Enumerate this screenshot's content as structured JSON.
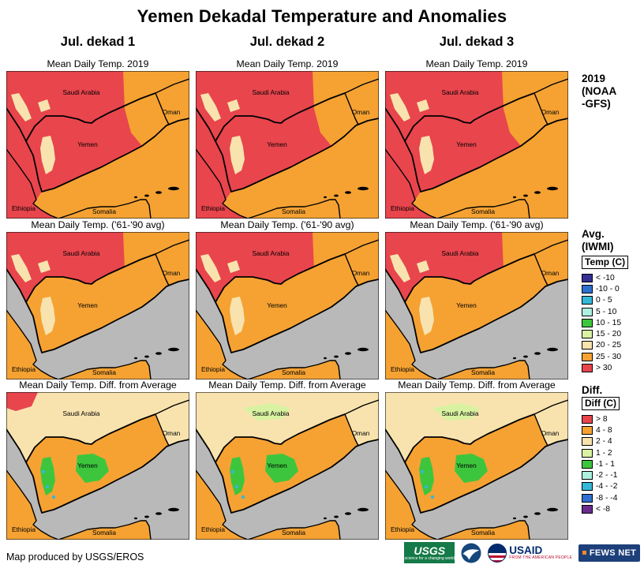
{
  "title": "Yemen Dekadal Temperature and Anomalies",
  "columns": [
    "Jul. dekad 1",
    "Jul. dekad 2",
    "Jul. dekad 3"
  ],
  "rows": [
    {
      "subtitle": "Mean Daily Temp. 2019",
      "side_label": "2019\n(NOAA\n-GFS)"
    },
    {
      "subtitle": "Mean Daily Temp. ('61-'90 avg)",
      "side_label": "Avg.\n(IWMI)"
    },
    {
      "subtitle": "Mean Daily Temp. Diff. from Average",
      "side_label": "Diff."
    }
  ],
  "map_labels": [
    "Saudi Arabia",
    "Oman",
    "Yemen",
    "Ethiopia",
    "Somalia"
  ],
  "panels": [
    [
      {
        "land": "#e8454d",
        "east": "#f5a233",
        "yemen": null,
        "highlands": "#f8e3ae",
        "spots": "#f8e3ae",
        "accent": null,
        "green1": null,
        "green2": null,
        "sea": "#f5a233",
        "redsea": "#e8454d",
        "ethiopia": "#e8454d",
        "somalia": "#f5a233"
      },
      {
        "land": "#e8454d",
        "east": "#f5a233",
        "yemen": null,
        "highlands": "#f8e3ae",
        "spots": "#f8e3ae",
        "accent": null,
        "green1": null,
        "green2": null,
        "sea": "#f5a233",
        "redsea": "#e8454d",
        "ethiopia": "#e8454d",
        "somalia": "#f5a233"
      },
      {
        "land": "#e8454d",
        "east": "#f5a233",
        "yemen": null,
        "highlands": "#f8e3ae",
        "spots": "#f8e3ae",
        "accent": null,
        "green1": null,
        "green2": null,
        "sea": "#f5a233",
        "redsea": "#e8454d",
        "ethiopia": "#e8454d",
        "somalia": "#f5a233"
      }
    ],
    [
      {
        "land": "#e8454d",
        "east": "#f5a233",
        "yemen": "#f5a233",
        "highlands": "#f8e3ae",
        "spots": "#f8e3ae",
        "accent": null,
        "green1": null,
        "green2": null,
        "sea": "#b9b9b9",
        "redsea": "#b9b9b9",
        "ethiopia": "#f5a233",
        "somalia": "#f5a233"
      },
      {
        "land": "#e8454d",
        "east": "#f5a233",
        "yemen": "#f5a233",
        "highlands": "#f8e3ae",
        "spots": "#f8e3ae",
        "accent": null,
        "green1": null,
        "green2": null,
        "sea": "#b9b9b9",
        "redsea": "#b9b9b9",
        "ethiopia": "#f5a233",
        "somalia": "#f5a233"
      },
      {
        "land": "#e8454d",
        "east": "#f5a233",
        "yemen": "#f5a233",
        "highlands": "#f8e3ae",
        "spots": "#f8e3ae",
        "accent": null,
        "green1": null,
        "green2": null,
        "sea": "#b9b9b9",
        "redsea": "#b9b9b9",
        "ethiopia": "#f5a233",
        "somalia": "#f5a233"
      }
    ],
    [
      {
        "land": "#f8e3ae",
        "east": null,
        "yemen": "#f5a233",
        "highlands": "#3dc63d",
        "spots": null,
        "accent": "#e8454d",
        "green1": "#3dc63d",
        "green2": null,
        "sea": "#b9b9b9",
        "redsea": "#b9b9b9",
        "ethiopia": "#f5a233",
        "somalia": "#f5a233"
      },
      {
        "land": "#f8e3ae",
        "east": null,
        "yemen": "#f5a233",
        "highlands": "#3dc63d",
        "spots": null,
        "accent": null,
        "green1": "#3dc63d",
        "green2": "#d9f2a2",
        "sea": "#b9b9b9",
        "redsea": "#b9b9b9",
        "ethiopia": "#f5a233",
        "somalia": "#f5a233"
      },
      {
        "land": "#f8e3ae",
        "east": null,
        "yemen": "#f5a233",
        "highlands": "#3dc63d",
        "spots": null,
        "accent": null,
        "green1": "#3dc63d",
        "green2": "#d9f2a2",
        "sea": "#b9b9b9",
        "redsea": "#b9b9b9",
        "ethiopia": "#f5a233",
        "somalia": "#f5a233"
      }
    ]
  ],
  "legends": {
    "temp": {
      "title": "Temp (C)",
      "entries": [
        {
          "label": "< -10",
          "color": "#352f96"
        },
        {
          "label": "-10 - 0",
          "color": "#2f6fd0"
        },
        {
          "label": "0 - 5",
          "color": "#35b8d8"
        },
        {
          "label": "5 - 10",
          "color": "#aef0e0"
        },
        {
          "label": "10 - 15",
          "color": "#3dc63d"
        },
        {
          "label": "15 - 20",
          "color": "#d9f2a2"
        },
        {
          "label": "20 - 25",
          "color": "#f8e3ae"
        },
        {
          "label": "25 - 30",
          "color": "#f5a233"
        },
        {
          "label": "> 30",
          "color": "#e8454d"
        }
      ]
    },
    "diff": {
      "title": "Diff (C)",
      "entries": [
        {
          "label": "> 8",
          "color": "#e8454d"
        },
        {
          "label": "4 - 8",
          "color": "#f5a233"
        },
        {
          "label": "2 - 4",
          "color": "#f8e3ae"
        },
        {
          "label": "1 - 2",
          "color": "#d9f2a2"
        },
        {
          "label": "-1 - 1",
          "color": "#3dc63d"
        },
        {
          "label": "-2 - -1",
          "color": "#aef0e0"
        },
        {
          "label": "-4 - -2",
          "color": "#35b8d8"
        },
        {
          "label": "-8 - -4",
          "color": "#2f6fd0"
        },
        {
          "label": "< -8",
          "color": "#6a2d8e"
        }
      ]
    }
  },
  "footer": {
    "credit": "Map produced by USGS/EROS",
    "logos": {
      "usgs": {
        "name": "USGS",
        "tagline": "science for a changing world"
      },
      "noaa": {
        "name": "NOAA"
      },
      "usaid": {
        "name": "USAID",
        "tagline": "FROM THE AMERICAN PEOPLE"
      },
      "fewsnet": {
        "name": "FEWS NET"
      }
    }
  },
  "brand": {
    "usgs_green": "#147a48",
    "noaa_blue": "#16477c",
    "usaid_blue": "#002a6c",
    "usaid_red": "#ba0c2f",
    "fews_blue": "#1d3f7a",
    "fews_orange": "#f6882d",
    "sea_gray": "#b9b9b9"
  }
}
